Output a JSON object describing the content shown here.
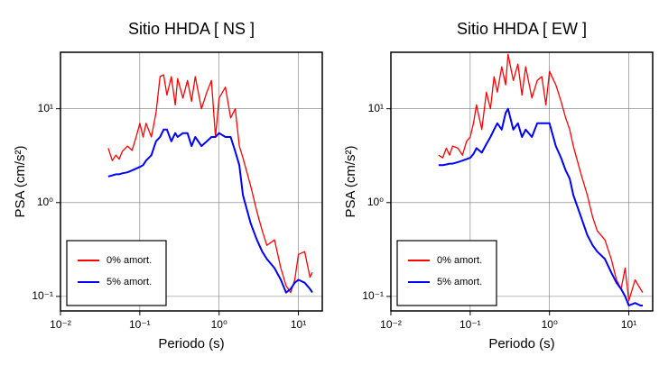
{
  "chart_data": [
    {
      "type": "line",
      "title": "Sitio HHDA [ NS ]",
      "xlabel": "Periodo (s)",
      "ylabel": "PSA (cm/s²)",
      "xscale": "log",
      "yscale": "log",
      "grid": true,
      "legend": "lower left",
      "xlim": [
        0.01,
        20
      ],
      "ylim": [
        0.07,
        40
      ],
      "xticks": [
        {
          "value": 0.01,
          "label": "10⁻²"
        },
        {
          "value": 0.1,
          "label": "10⁻¹"
        },
        {
          "value": 1,
          "label": "10⁰"
        },
        {
          "value": 10,
          "label": "10¹"
        }
      ],
      "yticks": [
        {
          "value": 0.1,
          "label": "10⁻¹"
        },
        {
          "value": 1,
          "label": "10⁰"
        },
        {
          "value": 10,
          "label": "10¹"
        }
      ],
      "x": [
        0.04,
        0.045,
        0.05,
        0.055,
        0.06,
        0.07,
        0.08,
        0.09,
        0.1,
        0.11,
        0.12,
        0.14,
        0.16,
        0.18,
        0.2,
        0.22,
        0.25,
        0.28,
        0.3,
        0.35,
        0.4,
        0.45,
        0.5,
        0.6,
        0.7,
        0.8,
        0.9,
        1.0,
        1.2,
        1.4,
        1.6,
        1.8,
        2,
        2.5,
        3,
        3.5,
        4,
        5,
        6,
        7,
        8,
        9,
        10,
        12,
        14,
        15
      ],
      "series": [
        {
          "name": "0% amort.",
          "color": "#ff0000",
          "values": [
            3.8,
            2.8,
            3.2,
            2.9,
            3.5,
            4,
            3.6,
            5,
            7,
            5,
            7,
            5,
            9,
            22,
            23,
            14,
            22,
            11,
            21,
            13,
            20,
            12,
            22,
            10,
            15,
            20,
            5,
            13,
            17,
            8,
            10,
            4,
            3,
            1.5,
            0.8,
            0.5,
            0.35,
            0.4,
            0.2,
            0.13,
            0.11,
            0.15,
            0.28,
            0.3,
            0.16,
            0.18
          ]
        },
        {
          "name": "5% amort.",
          "color": "#0000ff",
          "values": [
            1.9,
            1.95,
            2.0,
            2.0,
            2.05,
            2.1,
            2.2,
            2.3,
            2.4,
            2.5,
            2.8,
            3.2,
            4.5,
            5,
            6,
            6,
            4.5,
            5.5,
            5,
            5.5,
            5.5,
            4,
            5,
            4,
            4.5,
            5,
            5,
            5.5,
            5,
            5,
            3.5,
            2.5,
            1.2,
            0.6,
            0.4,
            0.3,
            0.25,
            0.2,
            0.15,
            0.11,
            0.12,
            0.14,
            0.15,
            0.14,
            0.12,
            0.11
          ]
        }
      ]
    },
    {
      "type": "line",
      "title": "Sitio HHDA [ EW ]",
      "xlabel": "Periodo (s)",
      "ylabel": "PSA (cm/s²)",
      "xscale": "log",
      "yscale": "log",
      "grid": true,
      "legend": "lower left",
      "xlim": [
        0.01,
        20
      ],
      "ylim": [
        0.07,
        40
      ],
      "xticks": [
        {
          "value": 0.01,
          "label": "10⁻²"
        },
        {
          "value": 0.1,
          "label": "10⁻¹"
        },
        {
          "value": 1,
          "label": "10⁰"
        },
        {
          "value": 10,
          "label": "10¹"
        }
      ],
      "yticks": [
        {
          "value": 0.1,
          "label": "10⁻¹"
        },
        {
          "value": 1,
          "label": "10⁰"
        },
        {
          "value": 10,
          "label": "10¹"
        }
      ],
      "x": [
        0.04,
        0.045,
        0.05,
        0.055,
        0.06,
        0.07,
        0.08,
        0.09,
        0.1,
        0.11,
        0.12,
        0.14,
        0.16,
        0.18,
        0.2,
        0.22,
        0.25,
        0.28,
        0.3,
        0.35,
        0.4,
        0.45,
        0.5,
        0.6,
        0.7,
        0.8,
        0.9,
        1.0,
        1.2,
        1.4,
        1.6,
        1.8,
        2,
        2.5,
        3,
        3.5,
        4,
        5,
        6,
        7,
        8,
        9,
        10,
        12,
        14,
        15
      ],
      "series": [
        {
          "name": "0% amort.",
          "color": "#ff0000",
          "values": [
            3.2,
            3,
            3.8,
            3.2,
            4,
            3.8,
            3.2,
            4.5,
            5,
            7,
            11,
            6,
            15,
            10,
            22,
            15,
            28,
            18,
            38,
            20,
            30,
            14,
            28,
            13,
            20,
            22,
            11,
            25,
            18,
            12,
            8,
            6,
            4,
            2,
            1.2,
            0.7,
            0.5,
            0.4,
            0.25,
            0.15,
            0.12,
            0.2,
            0.09,
            0.15,
            0.12,
            0.11
          ]
        },
        {
          "name": "5% amort.",
          "color": "#0000ff",
          "values": [
            2.5,
            2.5,
            2.55,
            2.6,
            2.6,
            2.7,
            2.8,
            2.9,
            3,
            3.3,
            3.8,
            3.4,
            4.2,
            5,
            6,
            7,
            6,
            9,
            10,
            6,
            7,
            5,
            6,
            5,
            7,
            7,
            7,
            7,
            4,
            3,
            2.2,
            1.8,
            1.2,
            0.7,
            0.45,
            0.35,
            0.3,
            0.25,
            0.18,
            0.14,
            0.12,
            0.1,
            0.08,
            0.085,
            0.08,
            0.08
          ]
        }
      ]
    }
  ]
}
